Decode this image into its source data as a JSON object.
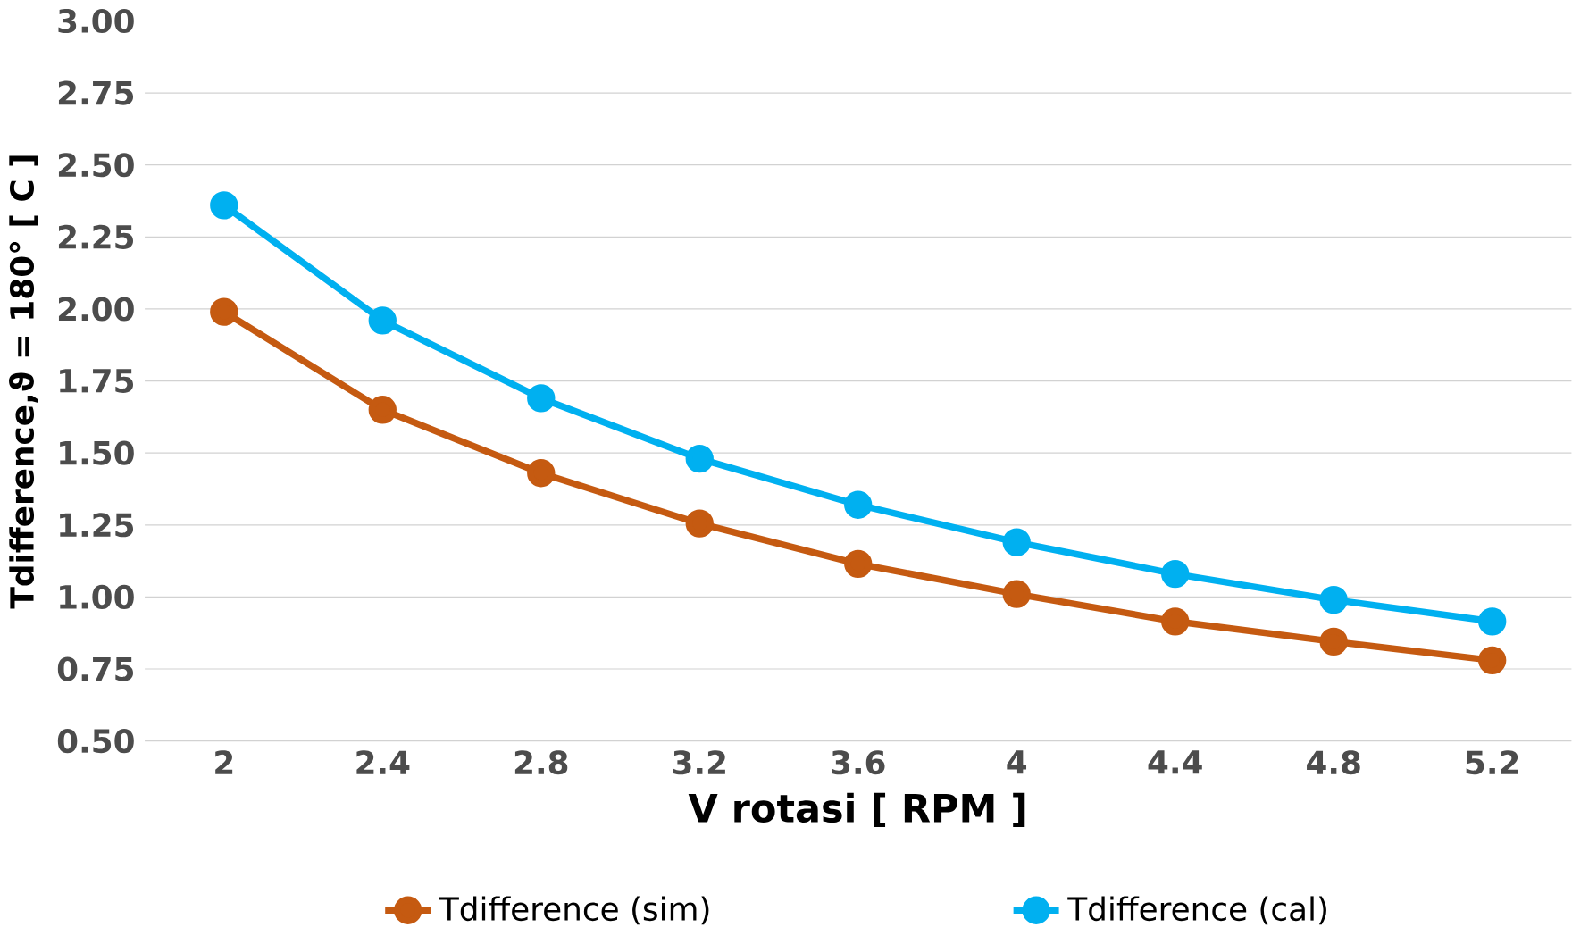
{
  "chart_data": {
    "type": "line",
    "xlabel": "V rotasi [ RPM ]",
    "ylabel": "Tdifference,ϑ = 180° [ C ]",
    "categories": [
      "2",
      "2.4",
      "2.8",
      "3.2",
      "3.6",
      "4",
      "4.4",
      "4.8",
      "5.2"
    ],
    "series": [
      {
        "name": "Tdifference (sim)",
        "color": "#c55a11",
        "values": [
          1.99,
          1.65,
          1.43,
          1.255,
          1.115,
          1.01,
          0.915,
          0.845,
          0.78
        ]
      },
      {
        "name": "Tdifference (cal)",
        "color": "#00b0f0",
        "values": [
          2.36,
          1.96,
          1.69,
          1.48,
          1.32,
          1.19,
          1.08,
          0.99,
          0.915
        ]
      }
    ],
    "ylim": [
      0.5,
      3.0
    ],
    "yticks": [
      {
        "value": 0.5,
        "label": "0.50"
      },
      {
        "value": 0.75,
        "label": "0.75"
      },
      {
        "value": 1.0,
        "label": "1.00"
      },
      {
        "value": 1.25,
        "label": "1.25"
      },
      {
        "value": 1.5,
        "label": "1.50"
      },
      {
        "value": 1.75,
        "label": "1.75"
      },
      {
        "value": 2.0,
        "label": "2.00"
      },
      {
        "value": 2.25,
        "label": "2.25"
      },
      {
        "value": 2.5,
        "label": "2.50"
      },
      {
        "value": 2.75,
        "label": "2.75"
      },
      {
        "value": 3.0,
        "label": "3.00"
      }
    ],
    "grid": "y",
    "legend": "bottom",
    "marker": "circle",
    "line_style": "solid"
  }
}
